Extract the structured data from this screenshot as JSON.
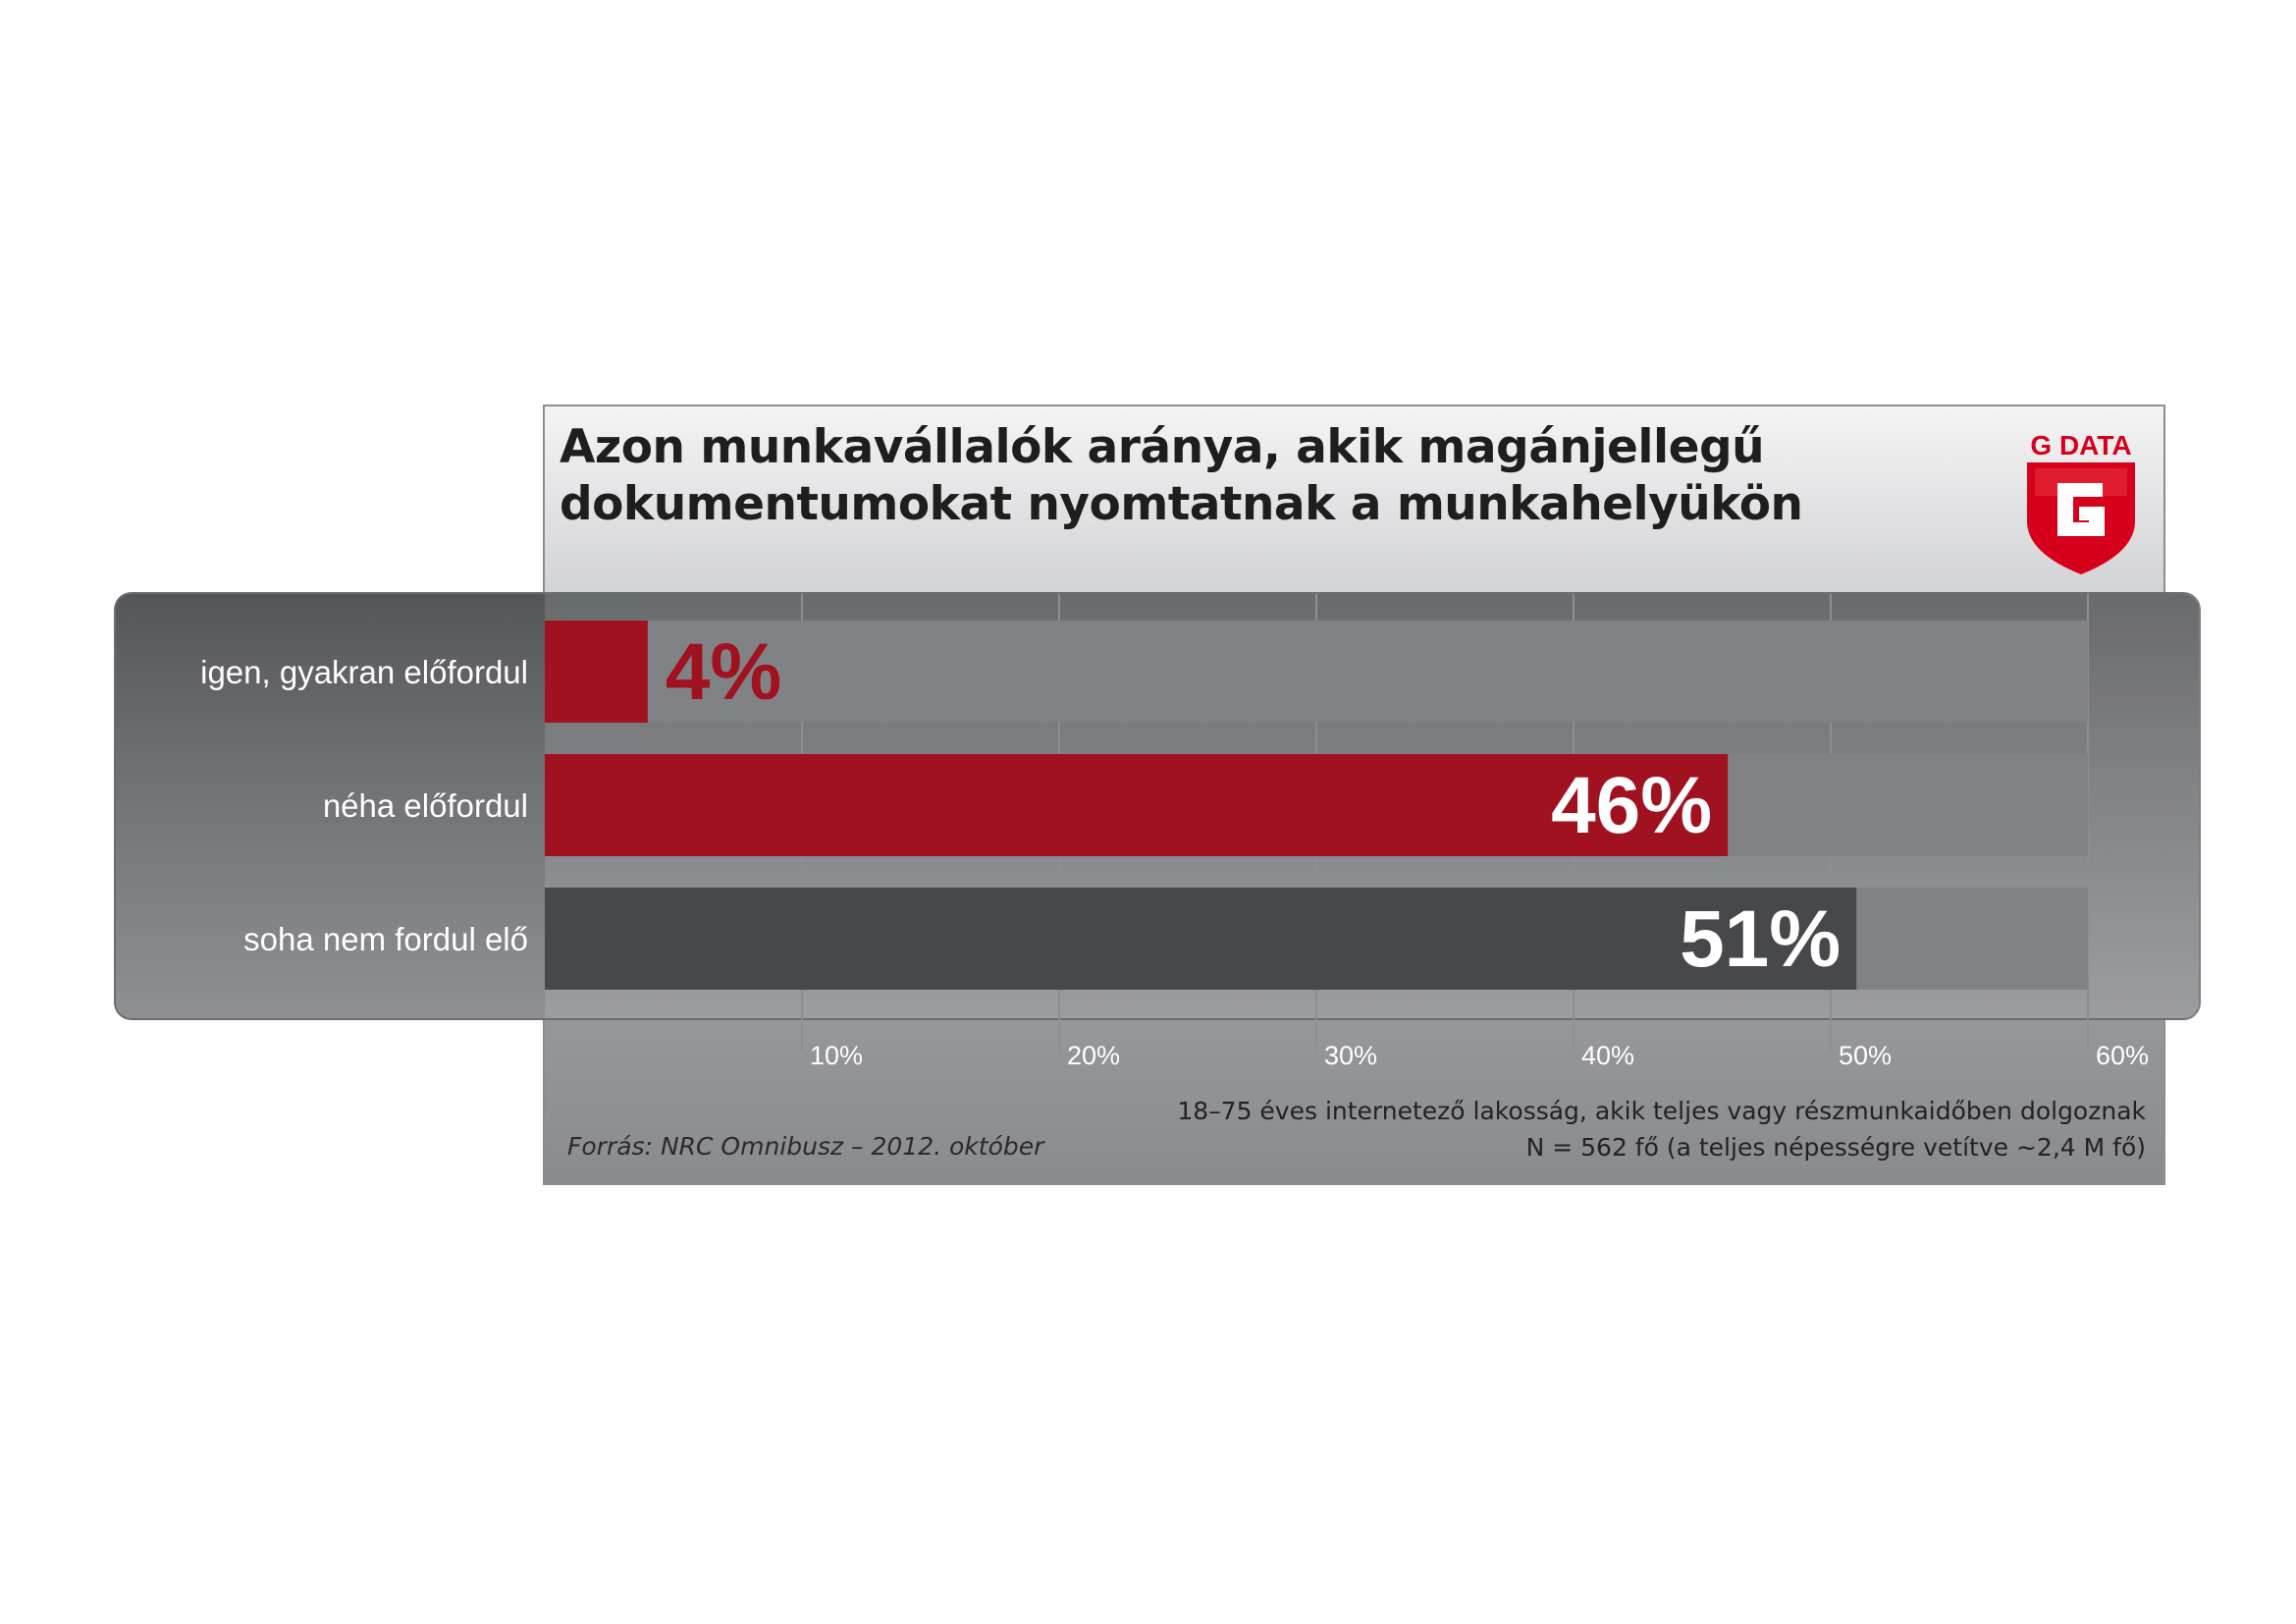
{
  "title": "Azon munkavállalók aránya, akik magánjellegű dokumentumokat nyomtatnak a munkahelyükön",
  "logo": {
    "text": "G DATA",
    "color": "#d6001c"
  },
  "source": "Forrás: NRC Omnibusz – 2012. október",
  "note_line1": "18–75 éves internetező lakosság, akik teljes vagy részmunkaidőben dolgoznak",
  "note_line2": "N = 562 fő (a teljes népességre vetítve ~2,4 M fő)",
  "colors": {
    "accent_red": "#a01220",
    "dark_bar": "#47484b",
    "track": "#808286",
    "label_text": "#ffffff"
  },
  "chart_data": {
    "type": "bar",
    "orientation": "horizontal",
    "title": "Azon munkavállalók aránya, akik magánjellegű dokumentumokat nyomtatnak a munkahelyükön",
    "categories": [
      "igen, gyakran előfordul",
      "néha előfordul",
      "soha nem fordul elő"
    ],
    "values": [
      4,
      46,
      51
    ],
    "value_labels": [
      "4%",
      "46%",
      "51%"
    ],
    "bar_colors": [
      "#a01220",
      "#a01220",
      "#47484b"
    ],
    "xlim": [
      0,
      60
    ],
    "x_ticks": [
      10,
      20,
      30,
      40,
      50,
      60
    ],
    "x_tick_labels": [
      "10%",
      "20%",
      "30%",
      "40%",
      "50%",
      "60%"
    ],
    "grid": true
  }
}
